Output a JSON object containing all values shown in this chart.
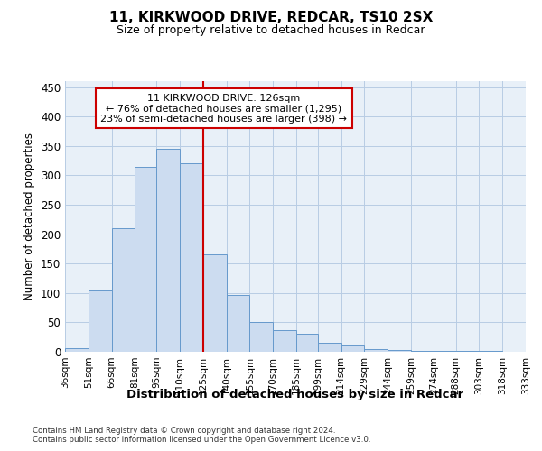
{
  "title_line1": "11, KIRKWOOD DRIVE, REDCAR, TS10 2SX",
  "title_line2": "Size of property relative to detached houses in Redcar",
  "xlabel": "Distribution of detached houses by size in Redcar",
  "ylabel": "Number of detached properties",
  "bin_labels": [
    "36sqm",
    "51sqm",
    "66sqm",
    "81sqm",
    "95sqm",
    "110sqm",
    "125sqm",
    "140sqm",
    "155sqm",
    "170sqm",
    "185sqm",
    "199sqm",
    "214sqm",
    "229sqm",
    "244sqm",
    "259sqm",
    "274sqm",
    "288sqm",
    "303sqm",
    "318sqm",
    "333sqm"
  ],
  "bin_edges": [
    36,
    51,
    66,
    81,
    95,
    110,
    125,
    140,
    155,
    170,
    185,
    199,
    214,
    229,
    244,
    259,
    274,
    288,
    303,
    318,
    333
  ],
  "bar_heights": [
    6,
    105,
    210,
    315,
    345,
    320,
    165,
    97,
    50,
    37,
    30,
    16,
    10,
    5,
    3,
    2,
    1,
    1,
    1,
    0
  ],
  "bar_facecolor": "#ccdcf0",
  "bar_edgecolor": "#6699cc",
  "property_line_x": 125,
  "annotation_line1": "11 KIRKWOOD DRIVE: 126sqm",
  "annotation_line2": "← 76% of detached houses are smaller (1,295)",
  "annotation_line3": "23% of semi-detached houses are larger (398) →",
  "annotation_box_edgecolor": "#cc0000",
  "annotation_line_color": "#cc0000",
  "ylim": [
    0,
    460
  ],
  "yticks": [
    0,
    50,
    100,
    150,
    200,
    250,
    300,
    350,
    400,
    450
  ],
  "plot_bg_color": "#e8f0f8",
  "background_color": "#ffffff",
  "grid_color": "#b8cce4",
  "footer_line1": "Contains HM Land Registry data © Crown copyright and database right 2024.",
  "footer_line2": "Contains public sector information licensed under the Open Government Licence v3.0."
}
